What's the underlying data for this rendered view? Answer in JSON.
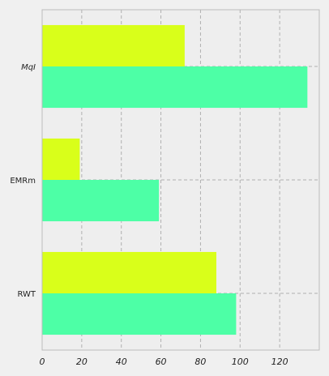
{
  "chart_data": {
    "type": "bar",
    "orientation": "horizontal",
    "categories": [
      "MqI",
      "EMRm",
      "RWT"
    ],
    "category_label_italic": [
      true,
      false,
      false
    ],
    "series": [
      {
        "color": "#d9ff1a",
        "values": [
          72,
          19,
          88
        ]
      },
      {
        "color": "#4dffa6",
        "values": [
          134,
          59,
          98
        ]
      }
    ],
    "xlim": [
      0,
      140
    ],
    "xticks": [
      0,
      20,
      40,
      60,
      80,
      100,
      120
    ],
    "xtick_labels": [
      "0",
      "20",
      "40",
      "60",
      "80",
      "100",
      "120"
    ],
    "grid": true,
    "plot_background": "#eeeeee",
    "page_background": "#f0f0f0",
    "grid_color": "#b0b0b0",
    "axis_color": "#bcbcbc"
  }
}
